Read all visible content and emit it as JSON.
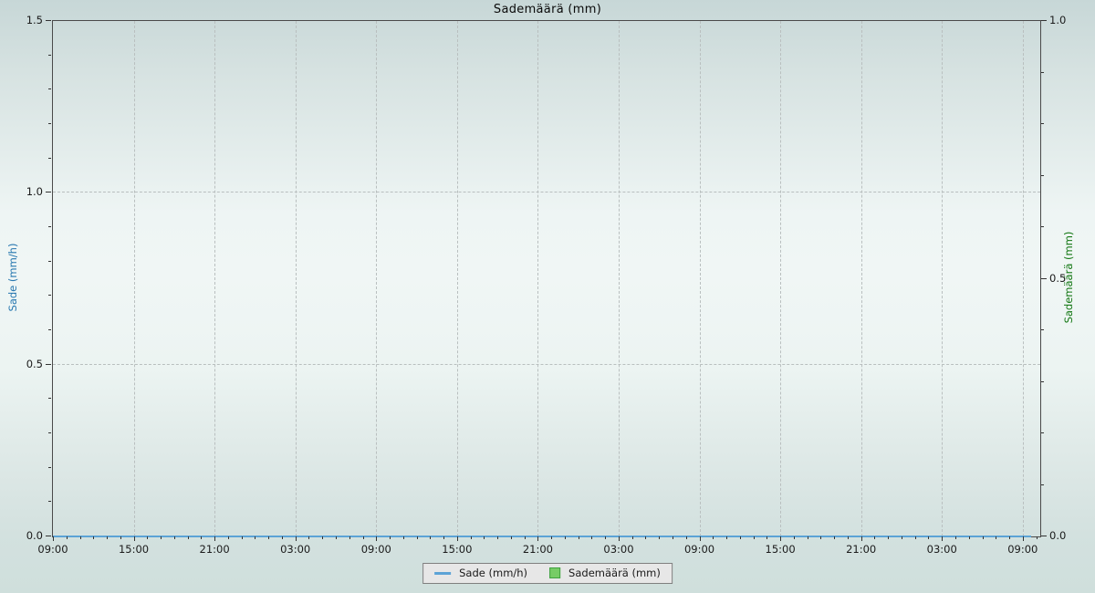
{
  "title": "Sademäärä (mm)",
  "chart_data": {
    "type": "line",
    "title": "Sademäärä (mm)",
    "x_axis": {
      "unit": "time",
      "tick_labels": [
        "09:00",
        "15:00",
        "21:00",
        "03:00",
        "09:00",
        "15:00",
        "21:00",
        "03:00",
        "09:00",
        "15:00",
        "21:00",
        "03:00",
        "09:00"
      ],
      "major_step_hours": 6,
      "minor_step_hours": 1,
      "span_hours": 73.3
    },
    "y_axis_left": {
      "label": "Sade (mm/h)",
      "label_color": "#2878b0",
      "lim": [
        0,
        1.5
      ],
      "major_ticks": [
        0,
        0.5,
        1,
        1.5
      ],
      "minor_step": 0.1
    },
    "y_axis_right": {
      "label": "Sademäärä (mm)",
      "label_color": "#147814",
      "lim": [
        0,
        1
      ],
      "major_ticks": [
        0,
        0.5,
        1
      ],
      "minor_step": 0.1
    },
    "series": [
      {
        "name": "Sade (mm/h)",
        "axis": "left",
        "style": "line",
        "color": "#5ca3d6",
        "values": [
          0,
          0,
          0,
          0,
          0,
          0,
          0,
          0,
          0,
          0,
          0,
          0,
          0
        ],
        "constant_value": 0,
        "end_hour": 72.6
      },
      {
        "name": "Sademäärä (mm)",
        "axis": "right",
        "style": "area",
        "fill_color": "#77cc66",
        "edge_color": "#3fa03f",
        "values": [
          0,
          0,
          0,
          0,
          0,
          0,
          0,
          0,
          0,
          0,
          0,
          0,
          0
        ],
        "constant_value": 0,
        "end_hour": 72.6
      }
    ],
    "grid": {
      "show": true,
      "style": "dashed",
      "color": "#b9bfbf"
    },
    "legend_position": "bottom-center"
  },
  "legend": {
    "items": [
      {
        "label": "Sade (mm/h)",
        "marker": "line",
        "color": "#5ca3d6"
      },
      {
        "label": "Sademäärä (mm)",
        "marker": "square",
        "fill": "#77cc66",
        "edge": "#3fa03f"
      }
    ]
  }
}
